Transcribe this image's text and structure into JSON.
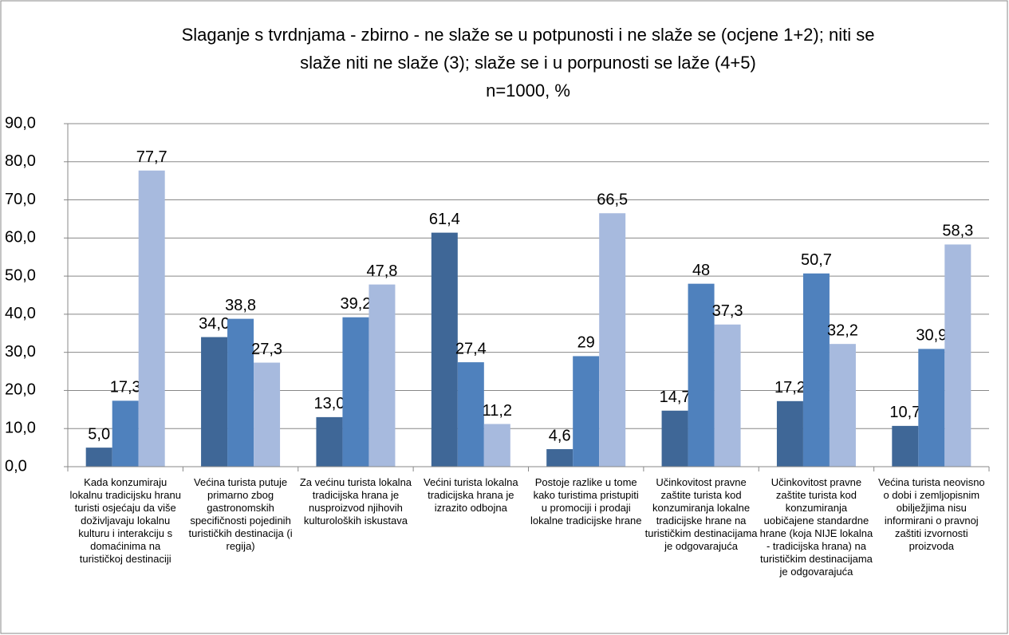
{
  "chart_data": {
    "type": "bar",
    "title": [
      "Slaganje s tvrdnjama - zbirno -  ne slaže se u potpunosti i ne slaže se (ocjene 1+2); niti se",
      "slaže niti ne slaže (3); slaže se i u porpunosti se laže (4+5)"
    ],
    "subtitle": "n=1000, %",
    "categories": [
      "Kada konzumiraju lokalnu tradicijsku hranu turisti osjećaju da više doživljavaju lokalnu kulturu i interakciju s domaćinima na turističkoj destinaciji",
      "Većina turista putuje primarno zbog gastronomskih specifičnosti pojedinih turističkih destinacija (i regija)",
      "Za većinu turista lokalna tradicijska hrana je nusproizvod njihovih kulturoloških iskustava",
      "Većini turista lokalna tradicijska hrana je izrazito odbojna",
      "Postoje razlike u tome kako turistima pristupiti u promociji i prodaji lokalne tradicijske hrane",
      "Učinkovitost pravne zaštite turista kod konzumiranja lokalne tradicijske hrane na turističkim destinacijama je odgovarajuća",
      "Učinkovitost pravne zaštite turista kod konzumiranja uobičajene standardne hrane (koja NIJE lokalna - tradicijska hrana) na turističkim destinacijama je odgovarajuća",
      "Većina turista neovisno o dobi i zemljopisnim obilježjima nisu informirani o pravnoj zaštiti izvornosti proizvoda"
    ],
    "series": [
      {
        "color": "#3f6797",
        "values": [
          5.0,
          34.0,
          13.0,
          61.4,
          4.6,
          14.7,
          17.2,
          10.7
        ],
        "value_labels": [
          "5,0",
          "34,0",
          "13,0",
          "61,4",
          "4,6",
          "14,7",
          "17,2",
          "10,7"
        ]
      },
      {
        "color": "#4f81bd",
        "values": [
          17.3,
          38.8,
          39.2,
          27.4,
          29,
          48,
          50.7,
          30.9
        ],
        "value_labels": [
          "17,3",
          "38,8",
          "39,2",
          "27,4",
          "29",
          "48",
          "50,7",
          "30,9"
        ]
      },
      {
        "color": "#a7bade",
        "values": [
          77.7,
          27.3,
          47.8,
          11.2,
          66.5,
          37.3,
          32.2,
          58.3
        ],
        "value_labels": [
          "77,7",
          "27,3",
          "47,8",
          "11,2",
          "66,5",
          "37,3",
          "32,2",
          "58,3"
        ]
      }
    ],
    "ylim": [
      0,
      90
    ],
    "yticks": [
      {
        "value": 0,
        "label": "0,0"
      },
      {
        "value": 10,
        "label": "10,0"
      },
      {
        "value": 20,
        "label": "20,0"
      },
      {
        "value": 30,
        "label": "30,0"
      },
      {
        "value": 40,
        "label": "40,0"
      },
      {
        "value": 50,
        "label": "50,0"
      },
      {
        "value": 60,
        "label": "60,0"
      },
      {
        "value": 70,
        "label": "70,0"
      },
      {
        "value": 80,
        "label": "80,0"
      },
      {
        "value": 90,
        "label": "90,0"
      }
    ],
    "grid": true
  }
}
